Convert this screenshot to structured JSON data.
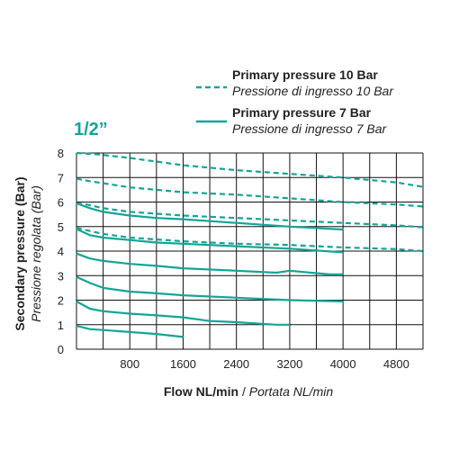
{
  "chart_data": {
    "type": "line",
    "title": "1/2”",
    "xlabel_main": "Flow NL/min",
    "xlabel_sep": " / ",
    "xlabel_sub": "Portata NL/min",
    "ylabel_main": "Secondary pressure (Bar)",
    "ylabel_sub": "Pressione regolata (Bar)",
    "xlim": [
      0,
      5200
    ],
    "ylim": [
      0,
      8
    ],
    "x_ticks": [
      800,
      1600,
      2400,
      3200,
      4000,
      4800
    ],
    "y_ticks": [
      0,
      1,
      2,
      3,
      4,
      5,
      6,
      7,
      8
    ],
    "grid": true,
    "legend_position": "top-right",
    "legend": [
      {
        "main": "Primary pressure 10 Bar",
        "sub": "Pressione di ingresso 10 Bar",
        "style": "dashed"
      },
      {
        "main": "Primary pressure 7 Bar",
        "sub": "Pressione di ingresso 7 Bar",
        "style": "solid"
      }
    ],
    "colors": {
      "series": "#12a596",
      "grid": "#111111",
      "text": "#222222"
    },
    "series": [
      {
        "group": "10 Bar",
        "style": "dashed",
        "x": [
          0,
          300,
          800,
          1600,
          2400,
          3200,
          4000,
          4800,
          5200
        ],
        "y": [
          8.0,
          7.95,
          7.8,
          7.5,
          7.3,
          7.15,
          7.0,
          6.8,
          6.62
        ]
      },
      {
        "group": "10 Bar",
        "style": "dashed",
        "x": [
          0,
          200,
          800,
          1600,
          2400,
          3200,
          4000,
          4800,
          5200
        ],
        "y": [
          6.95,
          6.85,
          6.6,
          6.4,
          6.3,
          6.15,
          6.0,
          5.9,
          5.82
        ]
      },
      {
        "group": "10 Bar",
        "style": "dashed",
        "x": [
          0,
          150,
          400,
          800,
          1600,
          2400,
          3200,
          4000,
          4800,
          5200
        ],
        "y": [
          5.95,
          5.9,
          5.75,
          5.6,
          5.45,
          5.35,
          5.25,
          5.15,
          5.05,
          4.97
        ]
      },
      {
        "group": "10 Bar",
        "style": "dashed",
        "x": [
          0,
          150,
          400,
          800,
          1600,
          2400,
          3200,
          4000,
          4800,
          5200
        ],
        "y": [
          4.95,
          4.85,
          4.7,
          4.55,
          4.4,
          4.3,
          4.25,
          4.15,
          4.08,
          4.0
        ]
      },
      {
        "group": "7 Bar",
        "style": "solid",
        "x": [
          0,
          200,
          400,
          800,
          1200,
          1600,
          2400,
          3200,
          4000
        ],
        "y": [
          5.95,
          5.75,
          5.6,
          5.45,
          5.35,
          5.3,
          5.15,
          5.0,
          4.88
        ]
      },
      {
        "group": "7 Bar",
        "style": "solid",
        "x": [
          0,
          200,
          400,
          800,
          1200,
          1600,
          2400,
          3200,
          4000
        ],
        "y": [
          4.9,
          4.65,
          4.55,
          4.45,
          4.35,
          4.3,
          4.2,
          4.1,
          3.95
        ]
      },
      {
        "group": "7 Bar",
        "style": "solid",
        "x": [
          0,
          200,
          400,
          800,
          1200,
          1600,
          2400,
          3000,
          3200,
          3800,
          4000
        ],
        "y": [
          3.9,
          3.7,
          3.6,
          3.48,
          3.4,
          3.3,
          3.2,
          3.12,
          3.2,
          3.05,
          3.05
        ]
      },
      {
        "group": "7 Bar",
        "style": "solid",
        "x": [
          0,
          200,
          400,
          800,
          1200,
          1600,
          2400,
          3200,
          4000
        ],
        "y": [
          2.95,
          2.7,
          2.5,
          2.35,
          2.28,
          2.2,
          2.1,
          2.0,
          1.95
        ]
      },
      {
        "group": "7 Bar",
        "style": "solid",
        "x": [
          0,
          200,
          400,
          800,
          1200,
          1600,
          2000,
          2400,
          3000,
          3200
        ],
        "y": [
          1.95,
          1.65,
          1.55,
          1.45,
          1.38,
          1.3,
          1.15,
          1.1,
          1.0,
          1.0
        ]
      },
      {
        "group": "7 Bar",
        "style": "solid",
        "x": [
          0,
          200,
          400,
          800,
          1200,
          1600
        ],
        "y": [
          0.95,
          0.82,
          0.78,
          0.7,
          0.62,
          0.5
        ]
      }
    ]
  }
}
